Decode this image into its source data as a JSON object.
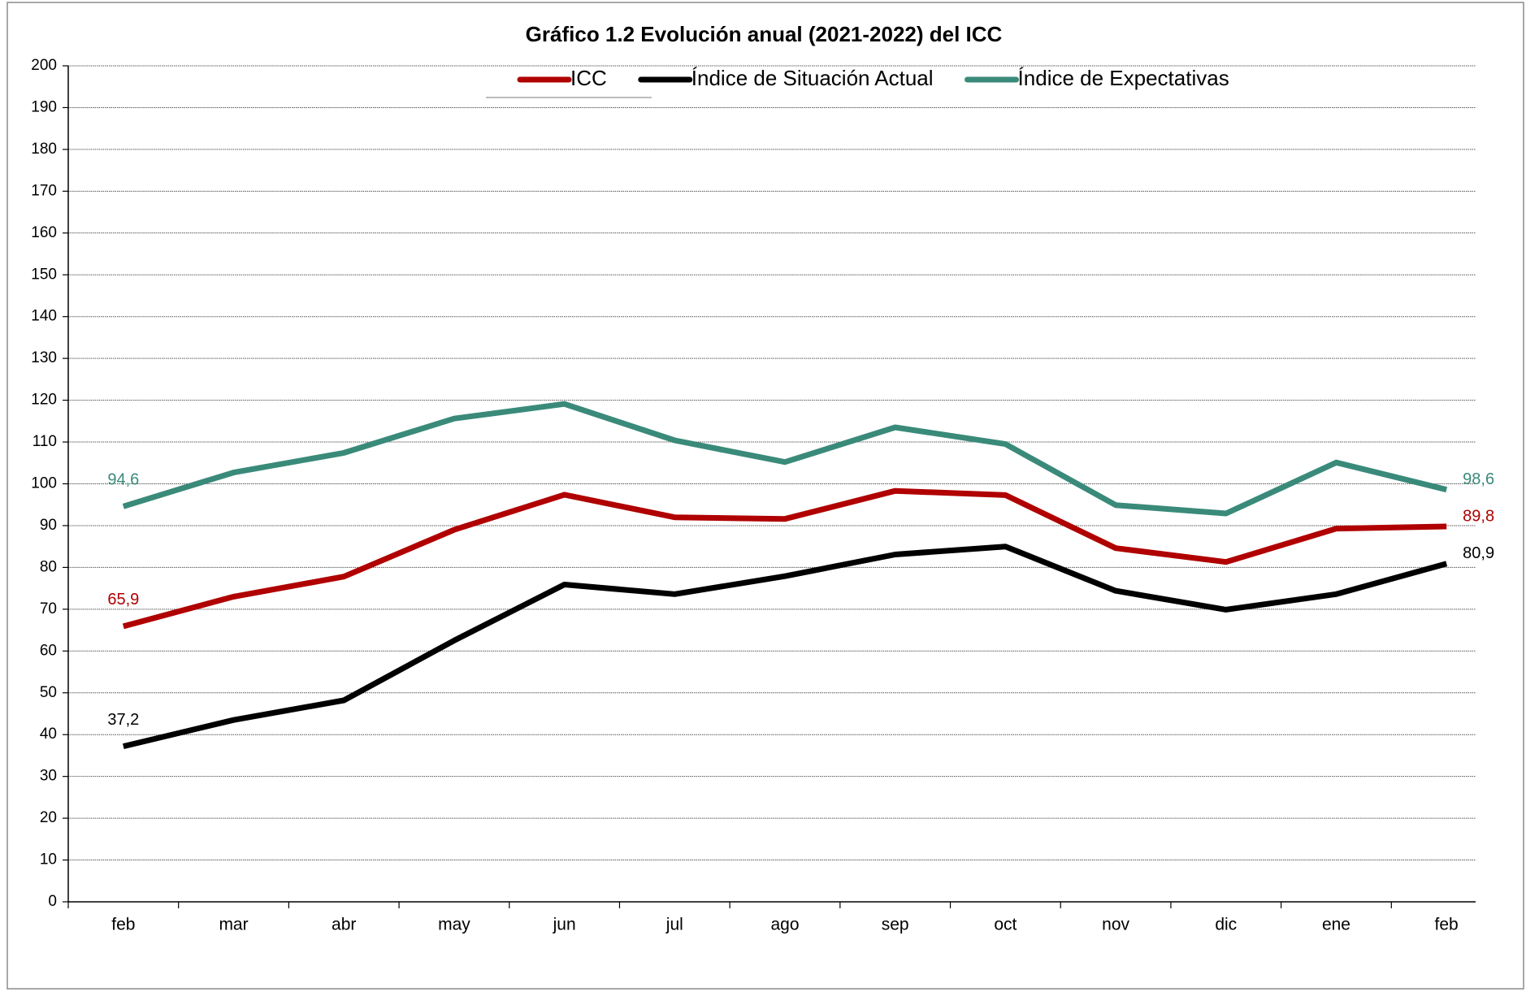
{
  "chart_data": {
    "type": "line",
    "title": "Gráfico 1.2 Evolución anual (2021-2022) del ICC",
    "categories": [
      "feb",
      "mar",
      "abr",
      "may",
      "jun",
      "jul",
      "ago",
      "sep",
      "oct",
      "nov",
      "dic",
      "ene",
      "feb"
    ],
    "series": [
      {
        "name": "ICC",
        "color": "#b00000",
        "values": [
          65.9,
          73.0,
          77.8,
          89.0,
          97.4,
          92.0,
          91.6,
          98.3,
          97.3,
          84.6,
          81.3,
          89.3,
          89.8
        ],
        "value_labels": [
          "65,9",
          null,
          null,
          null,
          null,
          null,
          null,
          null,
          null,
          null,
          null,
          null,
          "89,8"
        ]
      },
      {
        "name": "Índice de Situación Actual",
        "color": "#000000",
        "values": [
          37.2,
          43.5,
          48.2,
          62.5,
          75.9,
          73.6,
          77.9,
          83.1,
          85.0,
          74.4,
          69.9,
          73.6,
          80.9
        ],
        "value_labels": [
          "37,2",
          null,
          null,
          null,
          null,
          null,
          null,
          null,
          null,
          null,
          null,
          null,
          "80,9"
        ]
      },
      {
        "name": "Índice de Expectativas",
        "color": "#3a8a7a",
        "values": [
          94.6,
          102.7,
          107.4,
          115.6,
          119.1,
          110.4,
          105.2,
          113.5,
          109.5,
          94.9,
          92.9,
          105.1,
          98.6
        ],
        "value_labels": [
          "94,6",
          null,
          null,
          null,
          null,
          null,
          null,
          null,
          null,
          null,
          null,
          null,
          "98,6"
        ]
      }
    ],
    "ylim": [
      0,
      200
    ],
    "yticks": [
      0,
      10,
      20,
      30,
      40,
      50,
      60,
      70,
      80,
      90,
      100,
      110,
      120,
      130,
      140,
      150,
      160,
      170,
      180,
      190,
      200
    ],
    "grid": true,
    "legend": "top"
  }
}
